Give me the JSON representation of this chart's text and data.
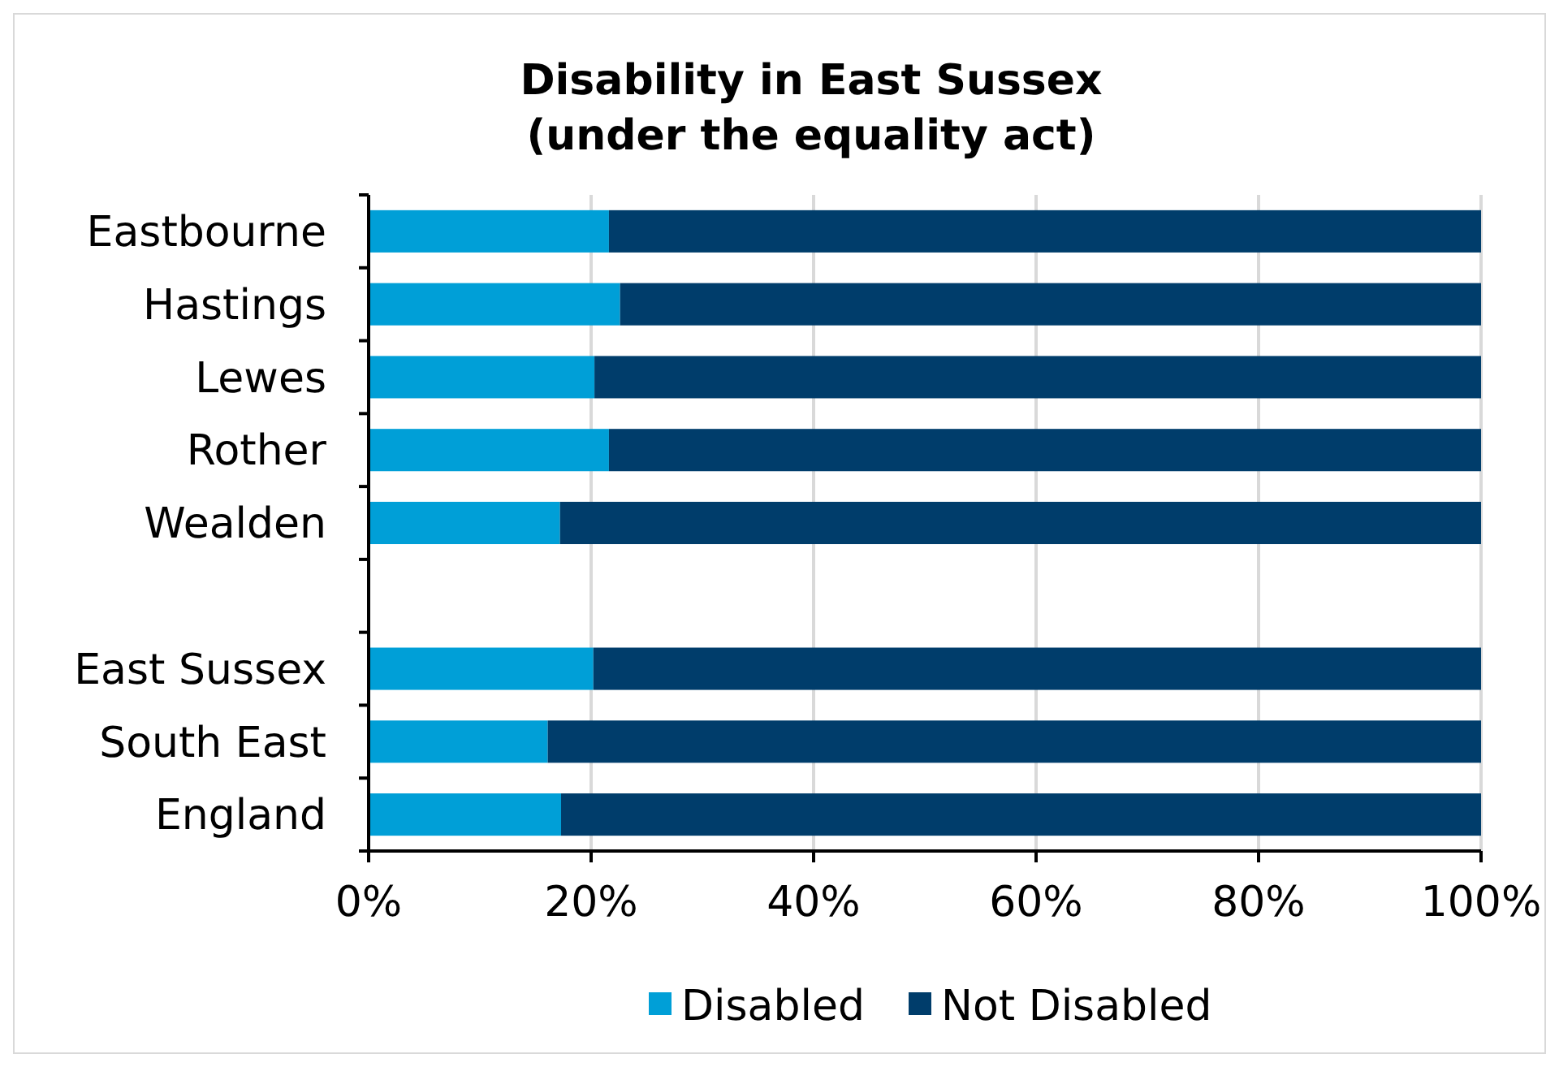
{
  "chart_data": {
    "type": "bar",
    "title": "Disability in East Sussex\n(under the equality act)",
    "orientation": "horizontal",
    "stacked": true,
    "categories": [
      "Eastbourne",
      "Hastings",
      "Lewes",
      "Rother",
      "Wealden",
      null,
      "East Sussex",
      "South East",
      "England"
    ],
    "series": [
      {
        "name": "Disabled",
        "color": "#009fd7",
        "values": [
          21.6,
          22.6,
          20.3,
          21.6,
          17.2,
          null,
          20.2,
          16.1,
          17.3
        ]
      },
      {
        "name": "Not Disabled",
        "color": "#003d6b",
        "values": [
          78.4,
          77.4,
          79.7,
          78.4,
          82.8,
          null,
          79.8,
          83.9,
          82.7
        ]
      }
    ],
    "xlim": [
      0,
      100
    ],
    "xticks": [
      {
        "value": 0,
        "label": "0%"
      },
      {
        "value": 20,
        "label": "20%"
      },
      {
        "value": 40,
        "label": "40%"
      },
      {
        "value": 60,
        "label": "60%"
      },
      {
        "value": 80,
        "label": "80%"
      },
      {
        "value": 100,
        "label": "100%"
      }
    ],
    "grid": "x",
    "legend": "bottom"
  }
}
